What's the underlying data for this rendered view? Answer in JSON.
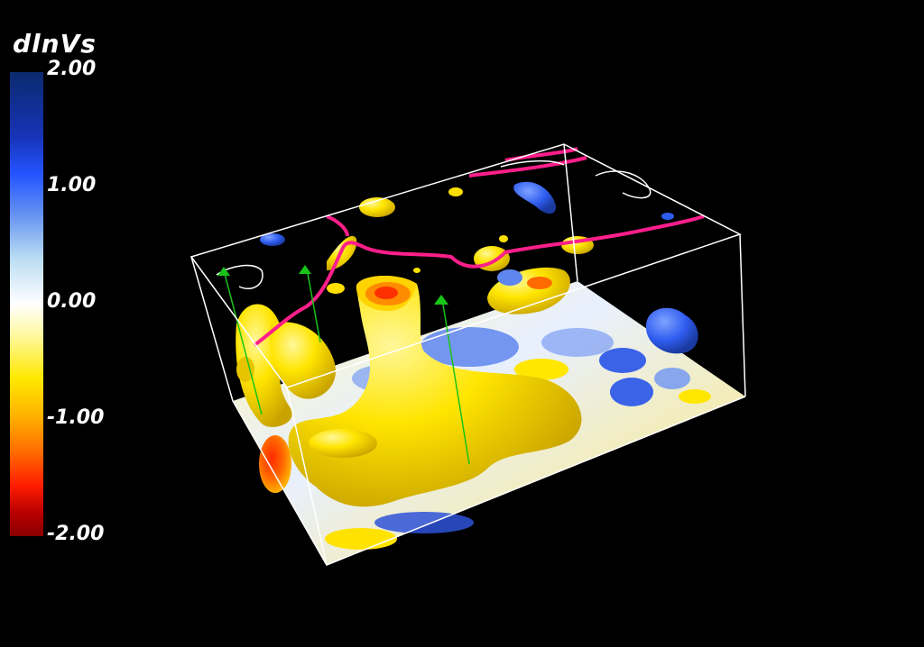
{
  "legend": {
    "title": "dlnVs",
    "ticks": [
      "2.00",
      "1.00",
      "0.00",
      "-1.00",
      "-2.00"
    ],
    "colors": [
      "#0b2a6e",
      "#2454ff",
      "#ffffff",
      "#ffe800",
      "#ff1d00",
      "#8a0000"
    ]
  },
  "scene": {
    "box_color": "#ffffff",
    "coastline_color": "#ff1f8a",
    "isosurface_color": "#ffe600",
    "marker_color": "#19c419"
  }
}
